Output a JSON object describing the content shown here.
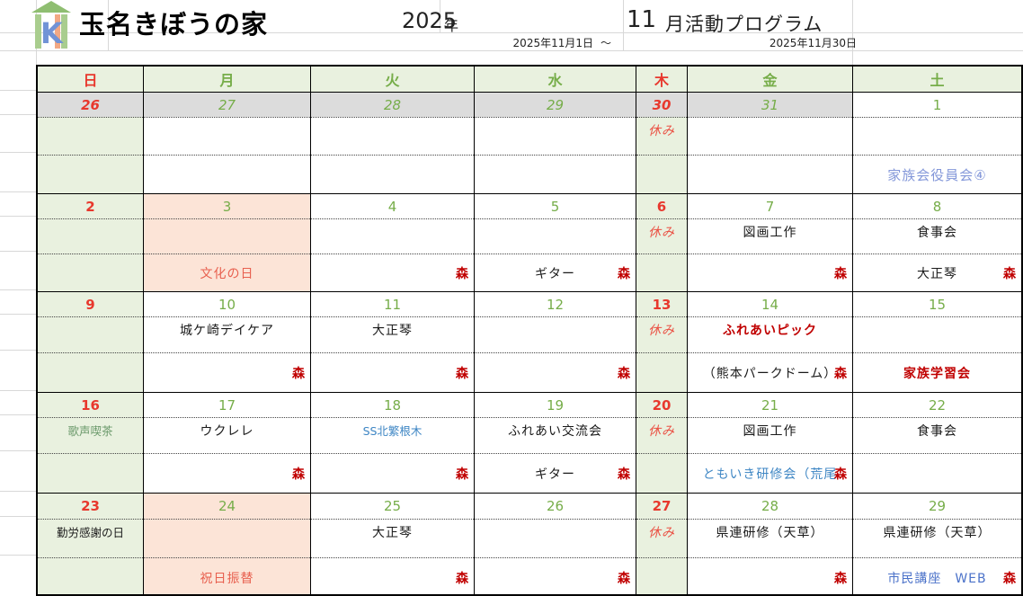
{
  "header": {
    "facility_name": "玉名きぼうの家",
    "year": "2025",
    "year_label": "年",
    "month": "11",
    "program_label": "月活動プログラム",
    "range_start": "2025年11月1日",
    "range_tilde": "～",
    "range_end": "2025年11月30日"
  },
  "colors": {
    "weekday_green": "#76AD49",
    "sunday_red": "#E8382D",
    "mori_red": "#C00000",
    "closed_column_green_bg": "#E9F1DF",
    "holiday_pink_bg": "#FCE4D7",
    "prev_month_gray_bg": "#DCDCDC",
    "link_blue": "#3E86C4",
    "periwinkle_blue": "#8397D9",
    "logo_roof_green": "#8FBE71",
    "logo_bar_green": "#A9CD8E",
    "logo_k_blue": "#7193D6",
    "logo_i_orange": "#F2A884"
  },
  "weekday_headers": [
    {
      "label": "日",
      "c": "r"
    },
    {
      "label": "月",
      "c": "g"
    },
    {
      "label": "火",
      "c": "g"
    },
    {
      "label": "水",
      "c": "g"
    },
    {
      "label": "木",
      "c": "r"
    },
    {
      "label": "金",
      "c": "g"
    },
    {
      "label": "土",
      "c": "g"
    }
  ],
  "weeks": [
    [
      {
        "date": "26",
        "dc": "r i",
        "bg": "green",
        "dbg": "gray"
      },
      {
        "date": "27",
        "dc": "g i",
        "bg": "white",
        "dbg": "gray"
      },
      {
        "date": "28",
        "dc": "g i",
        "bg": "white",
        "dbg": "gray"
      },
      {
        "date": "29",
        "dc": "g i",
        "bg": "white",
        "dbg": "gray"
      },
      {
        "date": "30",
        "dc": "r i",
        "bg": "green",
        "dbg": "gray",
        "a1": {
          "t": "休み",
          "c": "yasumi"
        }
      },
      {
        "date": "31",
        "dc": "g i",
        "bg": "white",
        "dbg": "gray"
      },
      {
        "date": "1",
        "dc": "g",
        "bg": "white",
        "dbg": "white",
        "a2": {
          "t": "家族会役員会④",
          "c": "periwinkle"
        }
      }
    ],
    [
      {
        "date": "2",
        "dc": "r",
        "bg": "green",
        "dbg": "green"
      },
      {
        "date": "3",
        "dc": "g",
        "bg": "pink",
        "dbg": "pink",
        "a2": {
          "t": "文化の日",
          "c": "holiday"
        }
      },
      {
        "date": "4",
        "dc": "g",
        "bg": "white",
        "dbg": "white",
        "a2r": {
          "t": "森",
          "c": "mori"
        }
      },
      {
        "date": "5",
        "dc": "g",
        "bg": "white",
        "dbg": "white",
        "a2": {
          "t": "ギター",
          "c": "black"
        },
        "a2r": {
          "t": "森",
          "c": "mori"
        }
      },
      {
        "date": "6",
        "dc": "r",
        "bg": "green",
        "dbg": "green",
        "a1": {
          "t": "休み",
          "c": "yasumi"
        }
      },
      {
        "date": "7",
        "dc": "g",
        "bg": "white",
        "dbg": "white",
        "a1": {
          "t": "図画工作",
          "c": "black"
        },
        "a2r": {
          "t": "森",
          "c": "mori"
        }
      },
      {
        "date": "8",
        "dc": "g",
        "bg": "white",
        "dbg": "white",
        "a1": {
          "t": "食事会",
          "c": "black"
        },
        "a2": {
          "t": "大正琴",
          "c": "black"
        },
        "a2r": {
          "t": "森",
          "c": "mori"
        }
      }
    ],
    [
      {
        "date": "9",
        "dc": "r",
        "bg": "green",
        "dbg": "green"
      },
      {
        "date": "10",
        "dc": "g",
        "bg": "white",
        "dbg": "white",
        "a1": {
          "t": "城ケ崎デイケア",
          "c": "black"
        },
        "a2r": {
          "t": "森",
          "c": "mori"
        }
      },
      {
        "date": "11",
        "dc": "g",
        "bg": "white",
        "dbg": "white",
        "a1": {
          "t": "大正琴",
          "c": "black"
        },
        "a2r": {
          "t": "森",
          "c": "mori"
        }
      },
      {
        "date": "12",
        "dc": "g",
        "bg": "white",
        "dbg": "white",
        "a2r": {
          "t": "森",
          "c": "mori"
        }
      },
      {
        "date": "13",
        "dc": "r",
        "bg": "green",
        "dbg": "green",
        "a1": {
          "t": "休み",
          "c": "yasumi"
        }
      },
      {
        "date": "14",
        "dc": "g",
        "bg": "white",
        "dbg": "white",
        "a1": {
          "t": "ふれあいピック",
          "c": "boldred"
        },
        "a2": {
          "t": "（熊本パークドーム）",
          "c": "black"
        },
        "a2r": {
          "t": "森",
          "c": "mori"
        }
      },
      {
        "date": "15",
        "dc": "g",
        "bg": "white",
        "dbg": "white",
        "a2": {
          "t": "家族学習会",
          "c": "boldred"
        }
      }
    ],
    [
      {
        "date": "16",
        "dc": "r",
        "bg": "green",
        "dbg": "green",
        "a1": {
          "t": "歌声喫茶",
          "c": "sage sm"
        }
      },
      {
        "date": "17",
        "dc": "g",
        "bg": "white",
        "dbg": "white",
        "a1": {
          "t": "ウクレレ",
          "c": "black"
        },
        "a2r": {
          "t": "森",
          "c": "mori"
        }
      },
      {
        "date": "18",
        "dc": "g",
        "bg": "white",
        "dbg": "white",
        "a1": {
          "t": "SS北繁根木",
          "c": "blue sm"
        },
        "a2r": {
          "t": "森",
          "c": "mori"
        }
      },
      {
        "date": "19",
        "dc": "g",
        "bg": "white",
        "dbg": "white",
        "a1": {
          "t": "ふれあい交流会",
          "c": "black"
        },
        "a2": {
          "t": "ギター",
          "c": "black"
        },
        "a2r": {
          "t": "森",
          "c": "mori"
        }
      },
      {
        "date": "20",
        "dc": "r",
        "bg": "green",
        "dbg": "green",
        "a1": {
          "t": "休み",
          "c": "yasumi"
        }
      },
      {
        "date": "21",
        "dc": "g",
        "bg": "white",
        "dbg": "white",
        "a1": {
          "t": "図画工作",
          "c": "black"
        },
        "a2": {
          "t": "ともいき研修会（荒尾",
          "c": "blue"
        },
        "a2r": {
          "t": "森",
          "c": "mori"
        }
      },
      {
        "date": "22",
        "dc": "g",
        "bg": "white",
        "dbg": "white",
        "a1": {
          "t": "食事会",
          "c": "black"
        }
      }
    ],
    [
      {
        "date": "23",
        "dc": "r",
        "bg": "green",
        "dbg": "green",
        "a1": {
          "t": "勤労感謝の日",
          "c": "black sm"
        }
      },
      {
        "date": "24",
        "dc": "g",
        "bg": "pink",
        "dbg": "pink",
        "a2": {
          "t": "祝日振替",
          "c": "holiday"
        }
      },
      {
        "date": "25",
        "dc": "g",
        "bg": "white",
        "dbg": "white",
        "a1": {
          "t": "大正琴",
          "c": "black"
        },
        "a2r": {
          "t": "森",
          "c": "mori"
        }
      },
      {
        "date": "26",
        "dc": "g",
        "bg": "white",
        "dbg": "white",
        "a2r": {
          "t": "森",
          "c": "mori"
        }
      },
      {
        "date": "27",
        "dc": "r",
        "bg": "green",
        "dbg": "green",
        "a1": {
          "t": "休み",
          "c": "yasumi"
        }
      },
      {
        "date": "28",
        "dc": "g",
        "bg": "white",
        "dbg": "white",
        "a1": {
          "t": "県連研修（天草）",
          "c": "black"
        },
        "a2r": {
          "t": "森",
          "c": "mori"
        }
      },
      {
        "date": "29",
        "dc": "g",
        "bg": "white",
        "dbg": "white",
        "a1": {
          "t": "県連研修（天草）",
          "c": "black"
        },
        "a2": {
          "t": "市民講座　WEB",
          "c": "indigo"
        },
        "a2r": {
          "t": "森",
          "c": "mori"
        }
      }
    ]
  ]
}
